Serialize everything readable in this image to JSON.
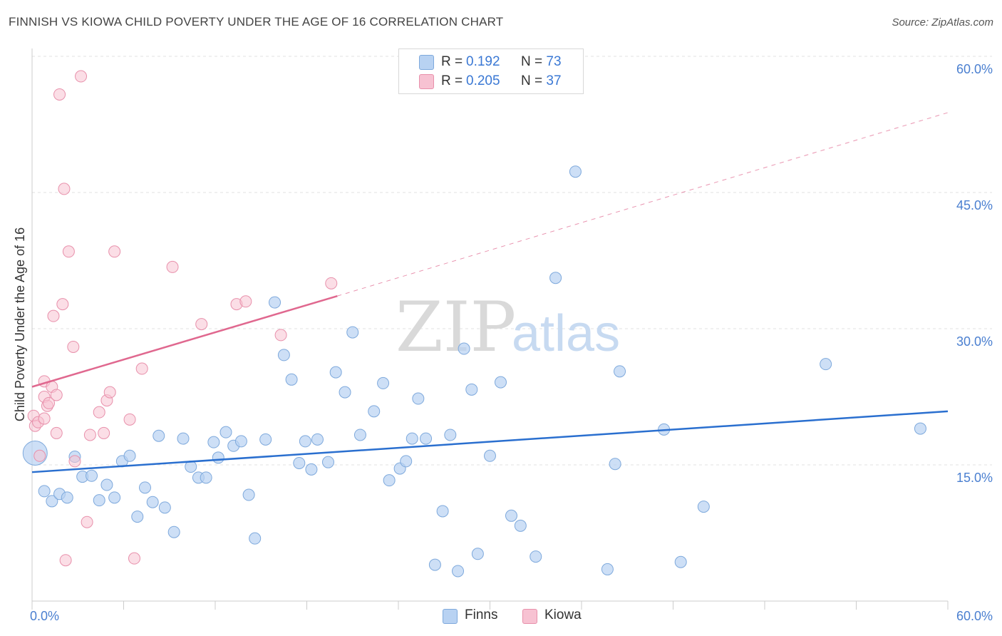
{
  "title": "FINNISH VS KIOWA CHILD POVERTY UNDER THE AGE OF 16 CORRELATION CHART",
  "source": "Source: ZipAtlas.com",
  "watermark": {
    "zip": "ZIP",
    "atlas": "atlas"
  },
  "colors": {
    "finns_fill": "#b8d2f2",
    "finns_stroke": "#7ea9dc",
    "finns_line": "#2a6fcf",
    "kiowa_fill": "#f7c2d2",
    "kiowa_stroke": "#e890ab",
    "kiowa_line": "#e0688f",
    "tick_text": "#4a7fd0"
  },
  "legend": {
    "rows": [
      {
        "r_label": "R =",
        "r_value": "0.192",
        "n_label": "N =",
        "n_value": "73"
      },
      {
        "r_label": "R =",
        "r_value": "0.205",
        "n_label": "N =",
        "n_value": "37"
      }
    ]
  },
  "bottom_legend": {
    "finns": "Finns",
    "kiowa": "Kiowa"
  },
  "chart_data": {
    "type": "scatter",
    "title": "FINNISH VS KIOWA CHILD POVERTY UNDER THE AGE OF 16 CORRELATION CHART",
    "xlabel": "",
    "ylabel": "Child Poverty Under the Age of 16",
    "xlim": [
      0,
      60
    ],
    "ylim": [
      0,
      60
    ],
    "x_tick_labels": [
      "0.0%",
      "60.0%"
    ],
    "y_tick_labels": [
      "15.0%",
      "30.0%",
      "45.0%",
      "60.0%"
    ],
    "y_ticks": [
      15,
      30,
      45,
      60
    ],
    "grid": true,
    "legend_position": "top-center",
    "series": [
      {
        "name": "Finns",
        "r": 0.192,
        "n": 73,
        "trend": {
          "x": [
            0,
            60
          ],
          "y": [
            14.2,
            20.9
          ]
        },
        "points": [
          [
            0.2,
            16.3
          ],
          [
            0.8,
            12.1
          ],
          [
            1.3,
            11.0
          ],
          [
            1.8,
            11.8
          ],
          [
            2.3,
            11.4
          ],
          [
            2.8,
            15.9
          ],
          [
            3.3,
            13.7
          ],
          [
            3.9,
            13.8
          ],
          [
            4.4,
            11.1
          ],
          [
            4.9,
            12.8
          ],
          [
            5.4,
            11.4
          ],
          [
            5.9,
            15.4
          ],
          [
            6.4,
            16.0
          ],
          [
            6.9,
            9.3
          ],
          [
            7.4,
            12.5
          ],
          [
            7.9,
            10.9
          ],
          [
            8.3,
            18.2
          ],
          [
            8.7,
            10.3
          ],
          [
            9.3,
            7.6
          ],
          [
            9.9,
            17.9
          ],
          [
            10.4,
            14.8
          ],
          [
            10.9,
            13.6
          ],
          [
            11.4,
            13.6
          ],
          [
            11.9,
            17.5
          ],
          [
            12.2,
            15.8
          ],
          [
            12.7,
            18.6
          ],
          [
            13.2,
            17.1
          ],
          [
            13.7,
            17.6
          ],
          [
            14.2,
            11.7
          ],
          [
            14.6,
            6.9
          ],
          [
            15.3,
            17.8
          ],
          [
            15.9,
            32.9
          ],
          [
            16.5,
            27.1
          ],
          [
            17.0,
            24.4
          ],
          [
            17.5,
            15.2
          ],
          [
            17.9,
            17.6
          ],
          [
            18.3,
            14.5
          ],
          [
            18.7,
            17.8
          ],
          [
            19.4,
            15.3
          ],
          [
            19.9,
            25.2
          ],
          [
            20.5,
            23.0
          ],
          [
            21.0,
            29.6
          ],
          [
            21.5,
            18.3
          ],
          [
            22.4,
            20.9
          ],
          [
            23.0,
            24.0
          ],
          [
            23.4,
            13.3
          ],
          [
            24.1,
            14.6
          ],
          [
            24.5,
            15.4
          ],
          [
            24.9,
            17.9
          ],
          [
            25.3,
            22.3
          ],
          [
            25.8,
            17.9
          ],
          [
            26.4,
            4.0
          ],
          [
            26.9,
            9.9
          ],
          [
            27.4,
            18.3
          ],
          [
            27.9,
            3.3
          ],
          [
            28.3,
            27.8
          ],
          [
            28.8,
            23.3
          ],
          [
            29.2,
            5.2
          ],
          [
            30.0,
            16.0
          ],
          [
            30.7,
            24.1
          ],
          [
            31.4,
            9.4
          ],
          [
            32.0,
            8.3
          ],
          [
            33.0,
            4.9
          ],
          [
            34.3,
            35.6
          ],
          [
            35.6,
            47.3
          ],
          [
            37.7,
            3.5
          ],
          [
            38.2,
            15.1
          ],
          [
            38.5,
            25.3
          ],
          [
            41.4,
            18.9
          ],
          [
            42.5,
            4.3
          ],
          [
            44.0,
            10.4
          ],
          [
            52.0,
            26.1
          ],
          [
            58.2,
            19.0
          ]
        ]
      },
      {
        "name": "Kiowa",
        "r": 0.205,
        "n": 37,
        "trend": {
          "x": [
            0,
            20
          ],
          "y": [
            23.6,
            33.6
          ]
        },
        "trend_dashed": {
          "x": [
            20,
            60
          ],
          "y": [
            33.6,
            53.8
          ]
        },
        "points": [
          [
            0.1,
            20.4
          ],
          [
            0.2,
            19.3
          ],
          [
            0.4,
            19.7
          ],
          [
            0.5,
            16.0
          ],
          [
            0.8,
            20.1
          ],
          [
            0.8,
            24.2
          ],
          [
            0.8,
            22.5
          ],
          [
            1.0,
            21.5
          ],
          [
            1.1,
            21.8
          ],
          [
            1.3,
            23.6
          ],
          [
            1.4,
            31.4
          ],
          [
            1.6,
            22.7
          ],
          [
            1.6,
            18.5
          ],
          [
            1.8,
            55.8
          ],
          [
            2.0,
            32.7
          ],
          [
            2.1,
            45.4
          ],
          [
            2.4,
            38.5
          ],
          [
            2.7,
            28.0
          ],
          [
            2.8,
            15.4
          ],
          [
            3.2,
            57.8
          ],
          [
            3.6,
            8.7
          ],
          [
            3.8,
            18.3
          ],
          [
            4.4,
            20.8
          ],
          [
            4.7,
            18.5
          ],
          [
            4.9,
            22.1
          ],
          [
            5.1,
            23.0
          ],
          [
            5.4,
            38.5
          ],
          [
            6.4,
            20.0
          ],
          [
            6.7,
            4.7
          ],
          [
            7.2,
            25.6
          ],
          [
            9.2,
            36.8
          ],
          [
            2.2,
            4.5
          ],
          [
            11.1,
            30.5
          ],
          [
            13.4,
            32.7
          ],
          [
            14.0,
            33.0
          ],
          [
            16.3,
            29.3
          ],
          [
            19.6,
            35.0
          ]
        ]
      }
    ]
  }
}
